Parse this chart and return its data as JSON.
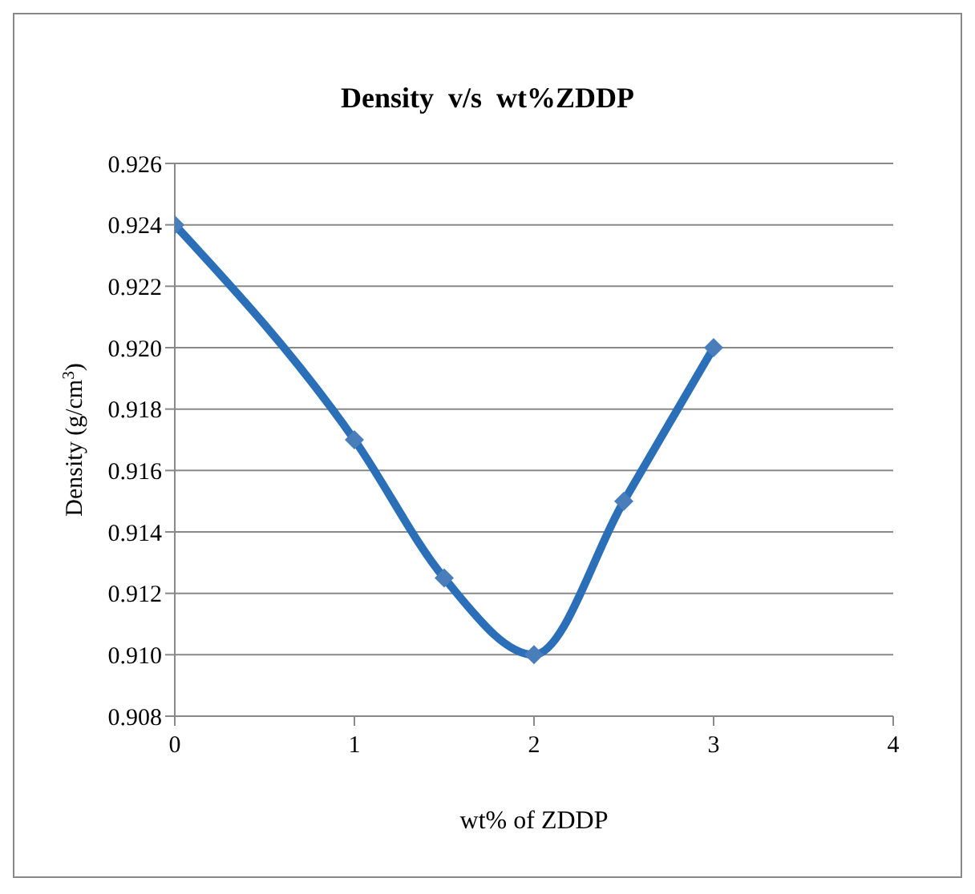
{
  "chart_data": {
    "type": "line",
    "title": "Density  v/s  wt%ZDDP",
    "xlabel": "wt%  of  ZDDP",
    "ylabel": "Density (g/cm$^{3}$)",
    "x": [
      0,
      1,
      1.5,
      2,
      2.5,
      3
    ],
    "series": [
      {
        "color": "#2a6fb8",
        "values": [
          0.924,
          0.917,
          0.9125,
          0.91,
          0.915,
          0.92
        ]
      }
    ],
    "xlim": [
      0,
      4
    ],
    "xticks": [
      0,
      1,
      2,
      3,
      4
    ],
    "ylim": [
      0.908,
      0.926
    ],
    "yticks": [
      {
        "value": 0.908,
        "label": "0.908"
      },
      {
        "value": 0.91,
        "label": "0.910"
      },
      {
        "value": 0.912,
        "label": "0.912"
      },
      {
        "value": 0.914,
        "label": "0.914"
      },
      {
        "value": 0.916,
        "label": "0.916"
      },
      {
        "value": 0.918,
        "label": "0.918"
      },
      {
        "value": 0.92,
        "label": "0.920"
      },
      {
        "value": 0.922,
        "label": "0.922"
      },
      {
        "value": 0.924,
        "label": "0.924"
      },
      {
        "value": 0.926,
        "label": "0.926"
      }
    ],
    "grid": "y",
    "legend": false,
    "marker": "diamond",
    "line_style": "solid"
  }
}
